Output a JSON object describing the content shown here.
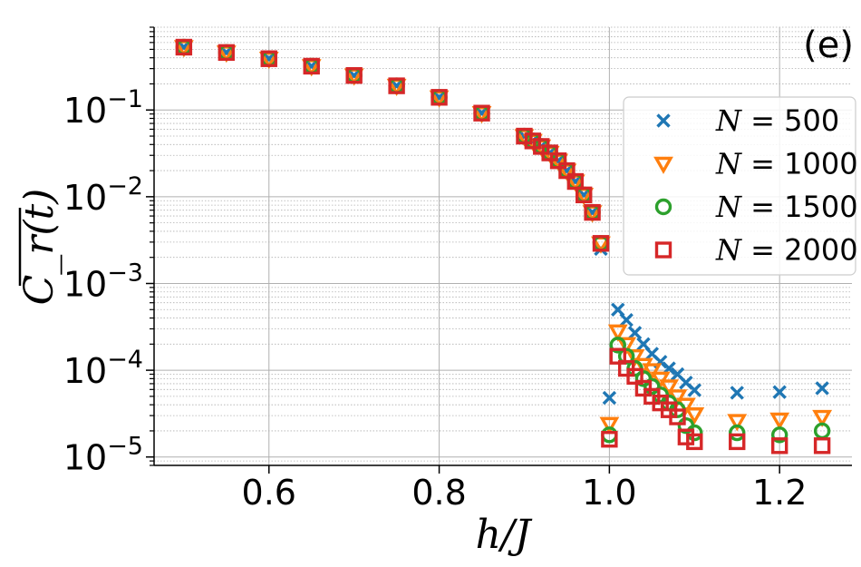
{
  "chart_data": {
    "type": "scatter",
    "panel_label": "(e)",
    "xlabel": "h/J",
    "ylabel": "C_r(t)",
    "xlim": [
      0.465,
      1.285
    ],
    "ylim": [
      8e-06,
      0.9
    ],
    "yscale": "log",
    "grid": true,
    "x_ticks": [
      0.6,
      0.8,
      1.0,
      1.2
    ],
    "x_tick_labels": [
      "0.6",
      "0.8",
      "1.0",
      "1.2"
    ],
    "y_ticks": [
      0.1,
      0.01,
      0.001,
      0.0001,
      1e-05
    ],
    "y_tick_labels": [
      {
        "base": "10",
        "exp": "−1"
      },
      {
        "base": "10",
        "exp": "−2"
      },
      {
        "base": "10",
        "exp": "−3"
      },
      {
        "base": "10",
        "exp": "−4"
      },
      {
        "base": "10",
        "exp": "−5"
      }
    ],
    "legend_placement": "right",
    "x": [
      0.5,
      0.55,
      0.6,
      0.65,
      0.7,
      0.75,
      0.8,
      0.85,
      0.9,
      0.91,
      0.92,
      0.93,
      0.94,
      0.95,
      0.96,
      0.97,
      0.98,
      0.99,
      1.0,
      1.01,
      1.02,
      1.03,
      1.04,
      1.05,
      1.06,
      1.07,
      1.08,
      1.09,
      1.1,
      1.15,
      1.2,
      1.25
    ],
    "series": [
      {
        "name": "N = 500",
        "marker": "x",
        "color": "#1f77b4",
        "values": [
          0.53,
          0.46,
          0.39,
          0.32,
          0.25,
          0.19,
          0.14,
          0.092,
          0.05,
          0.044,
          0.038,
          0.032,
          0.026,
          0.02,
          0.015,
          0.0105,
          0.0066,
          0.0025,
          4.8e-05,
          0.0005,
          0.00038,
          0.00027,
          0.0002,
          0.000155,
          0.000125,
          0.000105,
          9e-05,
          7.2e-05,
          5.9e-05,
          5.5e-05,
          5.6e-05,
          6.2e-05
        ]
      },
      {
        "name": "N = 1000",
        "marker": "triangle-down",
        "color": "#ff7f0e",
        "values": [
          0.53,
          0.46,
          0.39,
          0.32,
          0.25,
          0.19,
          0.14,
          0.092,
          0.05,
          0.044,
          0.038,
          0.032,
          0.026,
          0.02,
          0.015,
          0.0105,
          0.0066,
          0.0029,
          2.4e-05,
          0.00028,
          0.0002,
          0.000145,
          0.000115,
          0.0001,
          8e-05,
          6.5e-05,
          5e-05,
          4e-05,
          3.1e-05,
          2.6e-05,
          2.7e-05,
          2.9e-05
        ]
      },
      {
        "name": "N = 1500",
        "marker": "circle",
        "color": "#2ca02c",
        "values": [
          0.53,
          0.46,
          0.39,
          0.32,
          0.25,
          0.19,
          0.14,
          0.092,
          0.05,
          0.044,
          0.038,
          0.032,
          0.026,
          0.02,
          0.015,
          0.0105,
          0.0066,
          0.0029,
          1.8e-05,
          0.000195,
          0.000145,
          0.000105,
          8e-05,
          6.5e-05,
          5.2e-05,
          4.2e-05,
          3.5e-05,
          2.3e-05,
          1.9e-05,
          1.9e-05,
          1.8e-05,
          2e-05
        ]
      },
      {
        "name": "N = 2000",
        "marker": "square",
        "color": "#d62728",
        "values": [
          0.53,
          0.46,
          0.39,
          0.32,
          0.25,
          0.19,
          0.14,
          0.092,
          0.05,
          0.044,
          0.038,
          0.032,
          0.026,
          0.02,
          0.015,
          0.0105,
          0.0066,
          0.0029,
          1.6e-05,
          0.000145,
          0.000105,
          8.5e-05,
          6.2e-05,
          5e-05,
          4.2e-05,
          3.5e-05,
          2.9e-05,
          1.7e-05,
          1.5e-05,
          1.5e-05,
          1.35e-05,
          1.35e-05
        ]
      }
    ]
  }
}
